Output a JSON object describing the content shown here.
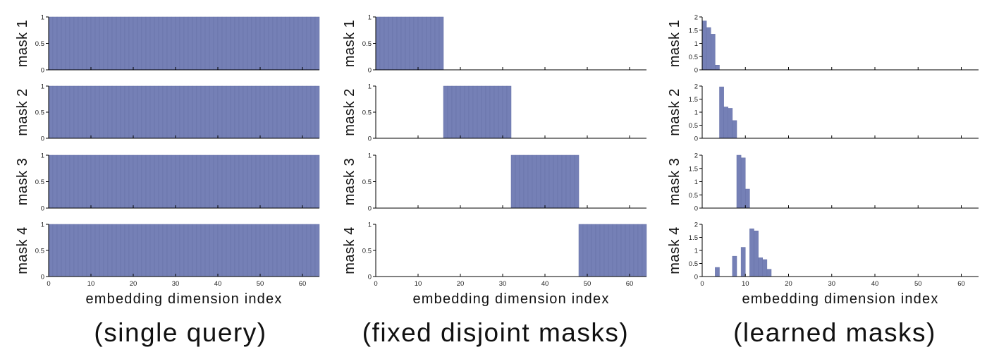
{
  "figure": {
    "colors": {
      "bar": "#7580b6",
      "bar_edge": "#6670a8",
      "axis": "#000000"
    },
    "panels": [
      {
        "caption": "(single query)",
        "xlabel": "embedding dimension index",
        "xticks": [
          0,
          10,
          20,
          30,
          40,
          50,
          60
        ],
        "xlim": [
          0,
          64
        ],
        "subplots": [
          {
            "ylabel": "mask 1",
            "ylim": [
              0,
              1
            ],
            "yticks": [
              {
                "v": 0,
                "t": "0"
              },
              {
                "v": 0.5,
                "t": "0.5"
              },
              {
                "v": 1,
                "t": "1"
              }
            ]
          },
          {
            "ylabel": "mask 2",
            "ylim": [
              0,
              1
            ],
            "yticks": [
              {
                "v": 0,
                "t": "0"
              },
              {
                "v": 0.5,
                "t": "0.5"
              },
              {
                "v": 1,
                "t": "1"
              }
            ]
          },
          {
            "ylabel": "mask 3",
            "ylim": [
              0,
              1
            ],
            "yticks": [
              {
                "v": 0,
                "t": "0"
              },
              {
                "v": 0.5,
                "t": "0.5"
              },
              {
                "v": 1,
                "t": "1"
              }
            ]
          },
          {
            "ylabel": "mask 4",
            "ylim": [
              0,
              1
            ],
            "yticks": [
              {
                "v": 0,
                "t": "0"
              },
              {
                "v": 0.5,
                "t": "0.5"
              },
              {
                "v": 1,
                "t": "1"
              }
            ]
          }
        ]
      },
      {
        "caption": "(fixed disjoint masks)",
        "xlabel": "embedding dimension index",
        "xticks": [
          0,
          10,
          20,
          30,
          40,
          50,
          60
        ],
        "xlim": [
          0,
          64
        ],
        "subplots": [
          {
            "ylabel": "mask 1",
            "ylim": [
              0,
              1
            ],
            "yticks": [
              {
                "v": 0,
                "t": "0"
              },
              {
                "v": 0.5,
                "t": "0.5"
              },
              {
                "v": 1,
                "t": "1"
              }
            ]
          },
          {
            "ylabel": "mask 2",
            "ylim": [
              0,
              1
            ],
            "yticks": [
              {
                "v": 0,
                "t": "0"
              },
              {
                "v": 0.5,
                "t": "0.5"
              },
              {
                "v": 1,
                "t": "1"
              }
            ]
          },
          {
            "ylabel": "mask 3",
            "ylim": [
              0,
              1
            ],
            "yticks": [
              {
                "v": 0,
                "t": "0"
              },
              {
                "v": 0.5,
                "t": "0.5"
              },
              {
                "v": 1,
                "t": "1"
              }
            ]
          },
          {
            "ylabel": "mask 4",
            "ylim": [
              0,
              1
            ],
            "yticks": [
              {
                "v": 0,
                "t": "0"
              },
              {
                "v": 0.5,
                "t": "0.5"
              },
              {
                "v": 1,
                "t": "1"
              }
            ]
          }
        ]
      },
      {
        "caption": "(learned masks)",
        "xlabel": "embedding dimension index",
        "xticks": [
          0,
          10,
          20,
          30,
          40,
          50,
          60
        ],
        "xlim": [
          0,
          64
        ],
        "subplots": [
          {
            "ylabel": "mask 1",
            "ylim": [
              0,
              2
            ],
            "yticks": [
              {
                "v": 0,
                "t": "0"
              },
              {
                "v": 0.5,
                "t": "0.5"
              },
              {
                "v": 1,
                "t": "1"
              },
              {
                "v": 1.5,
                "t": "1.5"
              },
              {
                "v": 2,
                "t": "2"
              }
            ]
          },
          {
            "ylabel": "mask 2",
            "ylim": [
              0,
              2
            ],
            "yticks": [
              {
                "v": 0,
                "t": "0"
              },
              {
                "v": 0.5,
                "t": "0.5"
              },
              {
                "v": 1,
                "t": "1"
              },
              {
                "v": 1.5,
                "t": "1.5"
              },
              {
                "v": 2,
                "t": "2"
              }
            ]
          },
          {
            "ylabel": "mask 3",
            "ylim": [
              0,
              2
            ],
            "yticks": [
              {
                "v": 0,
                "t": "0"
              },
              {
                "v": 0.5,
                "t": "0.5"
              },
              {
                "v": 1,
                "t": "1"
              },
              {
                "v": 1.5,
                "t": "1.5"
              },
              {
                "v": 2,
                "t": "2"
              }
            ]
          },
          {
            "ylabel": "mask 4",
            "ylim": [
              0,
              2
            ],
            "yticks": [
              {
                "v": 0,
                "t": "0"
              },
              {
                "v": 0.5,
                "t": "0.5"
              },
              {
                "v": 1,
                "t": "1"
              },
              {
                "v": 1.5,
                "t": "1.5"
              },
              {
                "v": 2,
                "t": "2"
              }
            ]
          }
        ]
      }
    ]
  },
  "chart_data": [
    {
      "type": "bar",
      "title": "(single query)",
      "xlabel": "embedding dimension index",
      "xlim": [
        0,
        64
      ],
      "x": [
        0,
        1,
        2,
        3,
        4,
        5,
        6,
        7,
        8,
        9,
        10,
        11,
        12,
        13,
        14,
        15,
        16,
        17,
        18,
        19,
        20,
        21,
        22,
        23,
        24,
        25,
        26,
        27,
        28,
        29,
        30,
        31,
        32,
        33,
        34,
        35,
        36,
        37,
        38,
        39,
        40,
        41,
        42,
        43,
        44,
        45,
        46,
        47,
        48,
        49,
        50,
        51,
        52,
        53,
        54,
        55,
        56,
        57,
        58,
        59,
        60,
        61,
        62,
        63
      ],
      "series": [
        {
          "name": "mask 1",
          "ylim": [
            0,
            1
          ],
          "values": [
            1,
            1,
            1,
            1,
            1,
            1,
            1,
            1,
            1,
            1,
            1,
            1,
            1,
            1,
            1,
            1,
            1,
            1,
            1,
            1,
            1,
            1,
            1,
            1,
            1,
            1,
            1,
            1,
            1,
            1,
            1,
            1,
            1,
            1,
            1,
            1,
            1,
            1,
            1,
            1,
            1,
            1,
            1,
            1,
            1,
            1,
            1,
            1,
            1,
            1,
            1,
            1,
            1,
            1,
            1,
            1,
            1,
            1,
            1,
            1,
            1,
            1,
            1,
            1
          ]
        },
        {
          "name": "mask 2",
          "ylim": [
            0,
            1
          ],
          "values": [
            1,
            1,
            1,
            1,
            1,
            1,
            1,
            1,
            1,
            1,
            1,
            1,
            1,
            1,
            1,
            1,
            1,
            1,
            1,
            1,
            1,
            1,
            1,
            1,
            1,
            1,
            1,
            1,
            1,
            1,
            1,
            1,
            1,
            1,
            1,
            1,
            1,
            1,
            1,
            1,
            1,
            1,
            1,
            1,
            1,
            1,
            1,
            1,
            1,
            1,
            1,
            1,
            1,
            1,
            1,
            1,
            1,
            1,
            1,
            1,
            1,
            1,
            1,
            1
          ]
        },
        {
          "name": "mask 3",
          "ylim": [
            0,
            1
          ],
          "values": [
            1,
            1,
            1,
            1,
            1,
            1,
            1,
            1,
            1,
            1,
            1,
            1,
            1,
            1,
            1,
            1,
            1,
            1,
            1,
            1,
            1,
            1,
            1,
            1,
            1,
            1,
            1,
            1,
            1,
            1,
            1,
            1,
            1,
            1,
            1,
            1,
            1,
            1,
            1,
            1,
            1,
            1,
            1,
            1,
            1,
            1,
            1,
            1,
            1,
            1,
            1,
            1,
            1,
            1,
            1,
            1,
            1,
            1,
            1,
            1,
            1,
            1,
            1,
            1
          ]
        },
        {
          "name": "mask 4",
          "ylim": [
            0,
            1
          ],
          "values": [
            1,
            1,
            1,
            1,
            1,
            1,
            1,
            1,
            1,
            1,
            1,
            1,
            1,
            1,
            1,
            1,
            1,
            1,
            1,
            1,
            1,
            1,
            1,
            1,
            1,
            1,
            1,
            1,
            1,
            1,
            1,
            1,
            1,
            1,
            1,
            1,
            1,
            1,
            1,
            1,
            1,
            1,
            1,
            1,
            1,
            1,
            1,
            1,
            1,
            1,
            1,
            1,
            1,
            1,
            1,
            1,
            1,
            1,
            1,
            1,
            1,
            1,
            1,
            1
          ]
        }
      ]
    },
    {
      "type": "bar",
      "title": "(fixed disjoint masks)",
      "xlabel": "embedding dimension index",
      "xlim": [
        0,
        64
      ],
      "x": [
        0,
        1,
        2,
        3,
        4,
        5,
        6,
        7,
        8,
        9,
        10,
        11,
        12,
        13,
        14,
        15,
        16,
        17,
        18,
        19,
        20,
        21,
        22,
        23,
        24,
        25,
        26,
        27,
        28,
        29,
        30,
        31,
        32,
        33,
        34,
        35,
        36,
        37,
        38,
        39,
        40,
        41,
        42,
        43,
        44,
        45,
        46,
        47,
        48,
        49,
        50,
        51,
        52,
        53,
        54,
        55,
        56,
        57,
        58,
        59,
        60,
        61,
        62,
        63
      ],
      "series": [
        {
          "name": "mask 1",
          "ylim": [
            0,
            1
          ],
          "values": [
            1,
            1,
            1,
            1,
            1,
            1,
            1,
            1,
            1,
            1,
            1,
            1,
            1,
            1,
            1,
            1,
            0,
            0,
            0,
            0,
            0,
            0,
            0,
            0,
            0,
            0,
            0,
            0,
            0,
            0,
            0,
            0,
            0,
            0,
            0,
            0,
            0,
            0,
            0,
            0,
            0,
            0,
            0,
            0,
            0,
            0,
            0,
            0,
            0,
            0,
            0,
            0,
            0,
            0,
            0,
            0,
            0,
            0,
            0,
            0,
            0,
            0,
            0,
            0
          ]
        },
        {
          "name": "mask 2",
          "ylim": [
            0,
            1
          ],
          "values": [
            0,
            0,
            0,
            0,
            0,
            0,
            0,
            0,
            0,
            0,
            0,
            0,
            0,
            0,
            0,
            0,
            1,
            1,
            1,
            1,
            1,
            1,
            1,
            1,
            1,
            1,
            1,
            1,
            1,
            1,
            1,
            1,
            0,
            0,
            0,
            0,
            0,
            0,
            0,
            0,
            0,
            0,
            0,
            0,
            0,
            0,
            0,
            0,
            0,
            0,
            0,
            0,
            0,
            0,
            0,
            0,
            0,
            0,
            0,
            0,
            0,
            0,
            0,
            0
          ]
        },
        {
          "name": "mask 3",
          "ylim": [
            0,
            1
          ],
          "values": [
            0,
            0,
            0,
            0,
            0,
            0,
            0,
            0,
            0,
            0,
            0,
            0,
            0,
            0,
            0,
            0,
            0,
            0,
            0,
            0,
            0,
            0,
            0,
            0,
            0,
            0,
            0,
            0,
            0,
            0,
            0,
            0,
            1,
            1,
            1,
            1,
            1,
            1,
            1,
            1,
            1,
            1,
            1,
            1,
            1,
            1,
            1,
            1,
            0,
            0,
            0,
            0,
            0,
            0,
            0,
            0,
            0,
            0,
            0,
            0,
            0,
            0,
            0,
            0
          ]
        },
        {
          "name": "mask 4",
          "ylim": [
            0,
            1
          ],
          "values": [
            0,
            0,
            0,
            0,
            0,
            0,
            0,
            0,
            0,
            0,
            0,
            0,
            0,
            0,
            0,
            0,
            0,
            0,
            0,
            0,
            0,
            0,
            0,
            0,
            0,
            0,
            0,
            0,
            0,
            0,
            0,
            0,
            0,
            0,
            0,
            0,
            0,
            0,
            0,
            0,
            0,
            0,
            0,
            0,
            0,
            0,
            0,
            0,
            1,
            1,
            1,
            1,
            1,
            1,
            1,
            1,
            1,
            1,
            1,
            1,
            1,
            1,
            1,
            1
          ]
        }
      ]
    },
    {
      "type": "bar",
      "title": "(learned masks)",
      "xlabel": "embedding dimension index",
      "xlim": [
        0,
        64
      ],
      "series": [
        {
          "name": "mask 1",
          "ylim": [
            0,
            2
          ],
          "x": [
            0,
            1,
            2,
            3
          ],
          "values": [
            1.85,
            1.6,
            1.35,
            0.18
          ]
        },
        {
          "name": "mask 2",
          "ylim": [
            0,
            2
          ],
          "x": [
            4,
            5,
            6,
            7
          ],
          "values": [
            1.97,
            1.2,
            1.15,
            0.68
          ]
        },
        {
          "name": "mask 3",
          "ylim": [
            0,
            2
          ],
          "x": [
            8,
            9,
            10
          ],
          "values": [
            2.0,
            1.9,
            0.72
          ]
        },
        {
          "name": "mask 4",
          "ylim": [
            0,
            2
          ],
          "x": [
            3,
            7,
            9,
            11,
            12,
            13,
            14,
            15
          ],
          "values": [
            0.35,
            0.78,
            1.12,
            1.83,
            1.75,
            0.72,
            0.65,
            0.28
          ]
        }
      ]
    }
  ]
}
